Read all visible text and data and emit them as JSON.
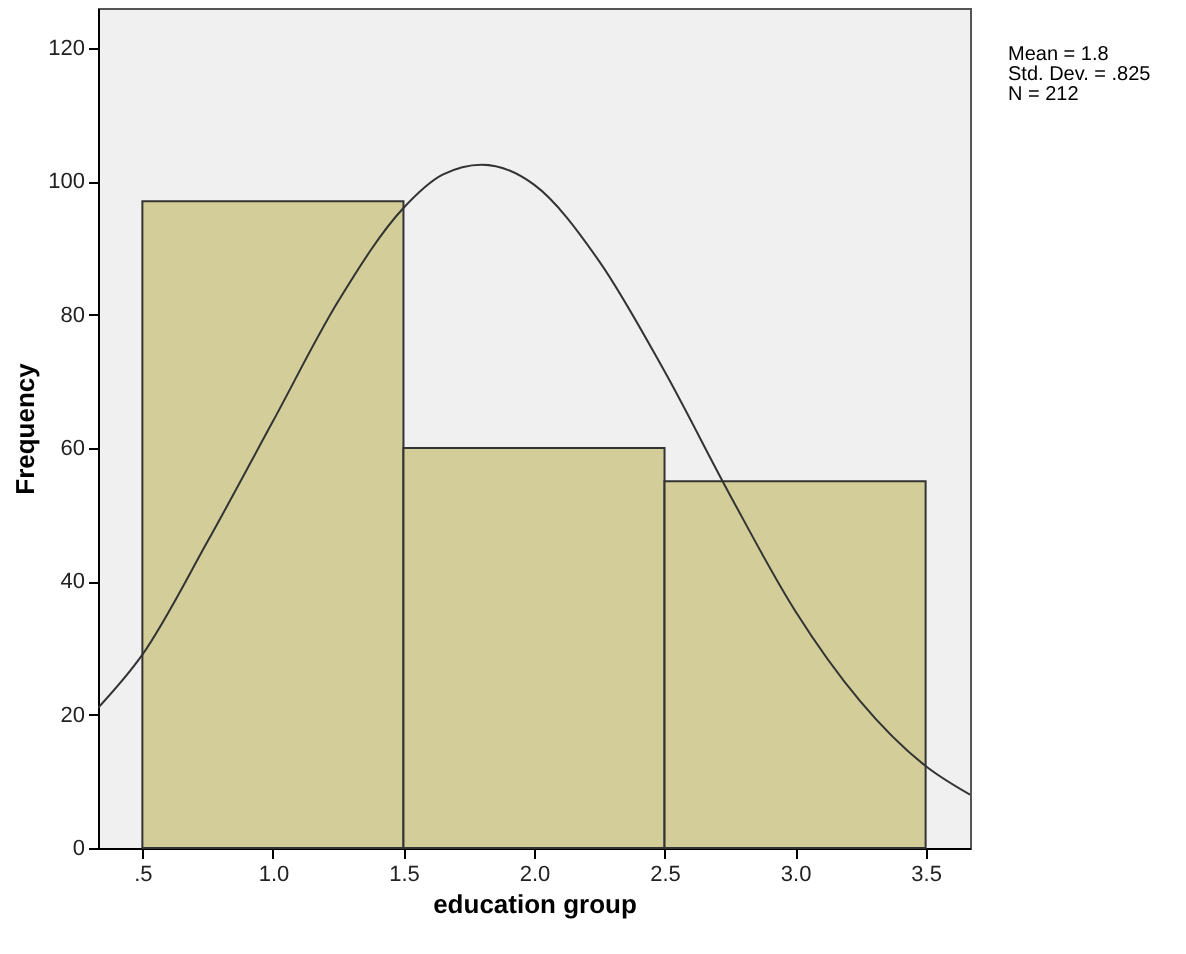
{
  "chart_data": {
    "type": "histogram",
    "xlabel": "education group",
    "ylabel": "Frequency",
    "bins": [
      0.5,
      1.5,
      2.5,
      3.5
    ],
    "values": [
      97,
      60,
      55
    ],
    "color": "#d3ce99",
    "series": [
      {
        "type": "line",
        "color": "#333333",
        "x": [
          0.33,
          0.5,
          0.75,
          1.0,
          1.25,
          1.5,
          1.65,
          1.8,
          2.0,
          2.25,
          2.5,
          2.75,
          3.0,
          3.25,
          3.5,
          3.67
        ],
        "values": [
          21,
          29,
          46,
          64,
          82,
          96,
          101,
          102.5,
          99.5,
          88,
          71.5,
          53,
          35.6,
          22,
          12.3,
          8
        ]
      }
    ],
    "xlim": [
      0.33,
      3.67
    ],
    "xticks": [
      {
        "value": 0.5,
        "label": ".5"
      },
      {
        "value": 1.0,
        "label": "1.0"
      },
      {
        "value": 1.5,
        "label": "1.5"
      },
      {
        "value": 2.0,
        "label": "2.0"
      },
      {
        "value": 2.5,
        "label": "2.5"
      },
      {
        "value": 3.0,
        "label": "3.0"
      },
      {
        "value": 3.5,
        "label": "3.5"
      }
    ],
    "ylim": [
      0,
      126
    ],
    "yticks": [
      0,
      20,
      40,
      60,
      80,
      100,
      120
    ],
    "grid": false,
    "annotations": [
      "Mean = 1.8",
      "Std. Dev. = .825",
      "N = 212"
    ]
  }
}
